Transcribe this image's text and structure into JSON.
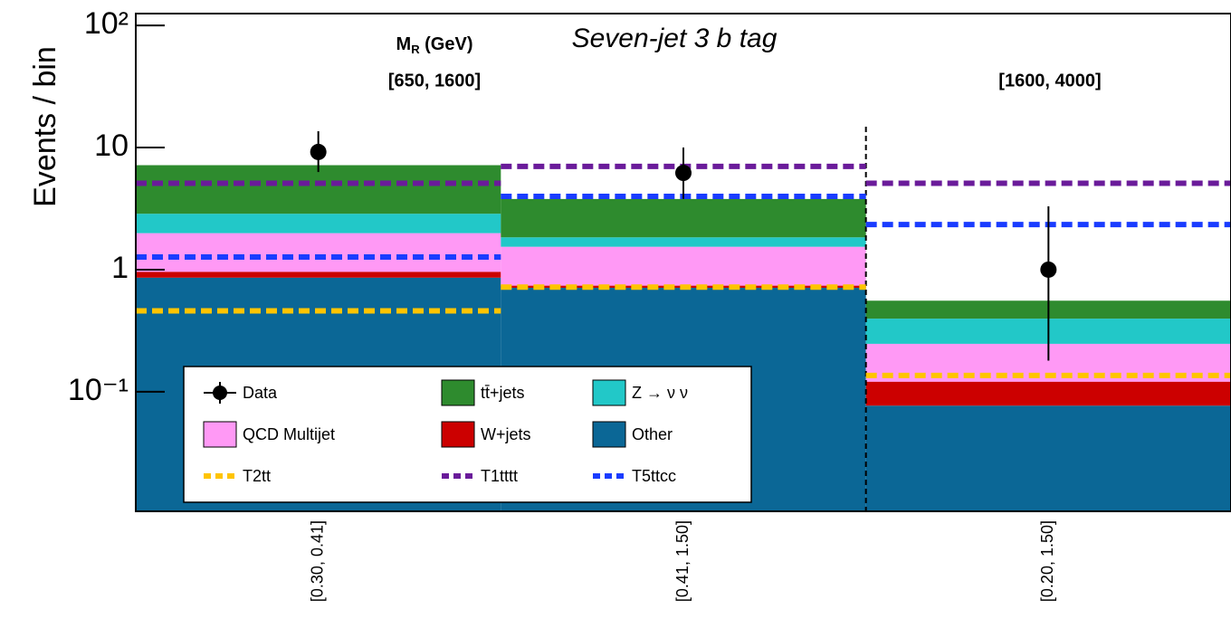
{
  "chart_data": {
    "type": "bar",
    "stacked": true,
    "log_scale_y": true,
    "y_label": "Events / bin",
    "annotations": {
      "channel": "Seven-jet 3 b tag",
      "mr_symbol": "M",
      "mr_subscript": "R",
      "mr_unit": " (GeV)",
      "mr_range_1": "[650, 1600]",
      "mr_range_2": "[1600, 4000]"
    },
    "categories": [
      "[0.30, 0.41]",
      "[0.41, 1.50]",
      "[0.20, 1.50]"
    ],
    "ylim": [
      0.0105,
      125
    ],
    "yticks": [
      {
        "value": 100,
        "label": "10²"
      },
      10,
      1,
      {
        "value": 0.1,
        "label": "10⁻¹"
      }
    ],
    "series": [
      {
        "name": "Data",
        "style": "points",
        "color": "#000000",
        "values": [
          9.2,
          6.2,
          1.0
        ],
        "error_low": [
          2.9,
          2.4,
          0.82
        ],
        "error_high": [
          4.4,
          3.8,
          2.3
        ]
      },
      {
        "name": "tt̄+jets",
        "style": "fill",
        "color": "#2e8b2e",
        "values": [
          4.3,
          1.95,
          0.16
        ]
      },
      {
        "name": "Z → ν ν",
        "style": "fill",
        "color": "#22c8c8",
        "values": [
          0.88,
          0.3,
          0.15
        ]
      },
      {
        "name": "QCD Multijet",
        "style": "fill",
        "color": "#ff99f5",
        "values": [
          1.03,
          0.8,
          0.126
        ]
      },
      {
        "name": "W+jets",
        "style": "fill",
        "color": "#cc0000",
        "values": [
          0.1,
          0.03,
          0.044
        ]
      },
      {
        "name": "Other",
        "style": "fill",
        "color": "#0b6796",
        "values": [
          0.86,
          0.71,
          0.077
        ]
      },
      {
        "name": "T2tt",
        "style": "dashed",
        "color": "#ffc400",
        "values": [
          0.46,
          0.72,
          0.136
        ]
      },
      {
        "name": "T1tttt",
        "style": "dashed",
        "color": "#6a1b9a",
        "values": [
          5.1,
          7.0,
          5.1
        ]
      },
      {
        "name": "T5ttcc",
        "style": "dashed",
        "color": "#1a3cff",
        "values": [
          1.27,
          3.98,
          2.34
        ]
      }
    ]
  }
}
